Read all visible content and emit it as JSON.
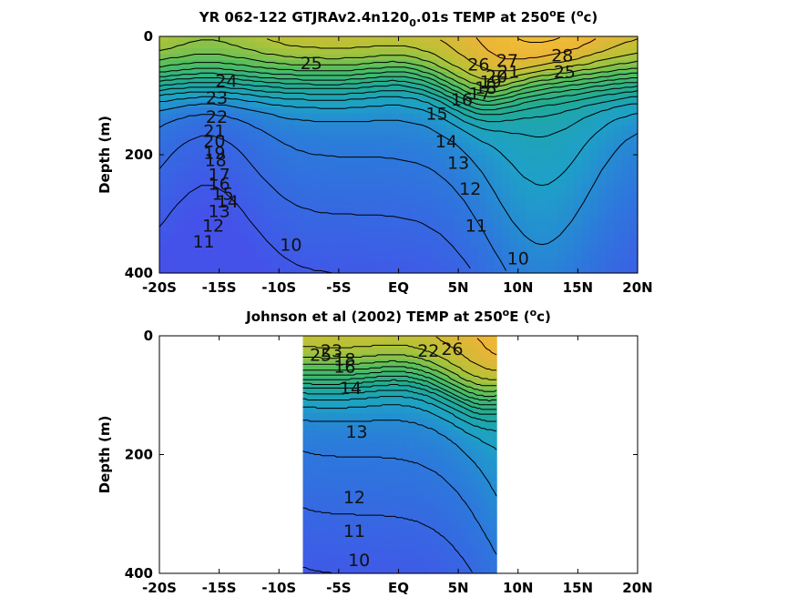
{
  "chart_data": [
    {
      "type": "heatmap",
      "title": "YR 062-122 GTJRAv2.4n120",
      "title_subscript": "0",
      "title_rest": ".01s TEMP at 250",
      "title_sup": "o",
      "title_end": "E (",
      "title_unit_sup": "o",
      "title_unit": "c)",
      "ylabel": "Depth (m)",
      "xlim": [
        -20,
        20
      ],
      "ylim": [
        0,
        400
      ],
      "x_ticks": [
        "-20S",
        "-15S",
        "-10S",
        "-5S",
        "EQ",
        "5N",
        "10N",
        "15N",
        "20N"
      ],
      "y_ticks": [
        "0",
        "200",
        "400"
      ],
      "grid": false,
      "contour_labels": [
        {
          "text": "25",
          "x": -7.3,
          "y": 55
        },
        {
          "text": "24",
          "x": -14.4,
          "y": 85
        },
        {
          "text": "23",
          "x": -15.2,
          "y": 114
        },
        {
          "text": "22",
          "x": -15.2,
          "y": 146
        },
        {
          "text": "21",
          "x": -15.4,
          "y": 170
        },
        {
          "text": "20",
          "x": -15.4,
          "y": 187
        },
        {
          "text": "19",
          "x": -15.4,
          "y": 207
        },
        {
          "text": "18",
          "x": -15.3,
          "y": 219
        },
        {
          "text": "17",
          "x": -15.0,
          "y": 244
        },
        {
          "text": "16",
          "x": -15.0,
          "y": 259
        },
        {
          "text": "15",
          "x": -14.7,
          "y": 276
        },
        {
          "text": "14",
          "x": -14.3,
          "y": 289
        },
        {
          "text": "13",
          "x": -15.0,
          "y": 305
        },
        {
          "text": "12",
          "x": -15.5,
          "y": 330
        },
        {
          "text": "11",
          "x": -16.3,
          "y": 357
        },
        {
          "text": "10",
          "x": -9.0,
          "y": 362
        },
        {
          "text": "26",
          "x": 6.7,
          "y": 58
        },
        {
          "text": "27",
          "x": 9.1,
          "y": 51
        },
        {
          "text": "28",
          "x": 13.7,
          "y": 42
        },
        {
          "text": "25",
          "x": 13.9,
          "y": 70
        },
        {
          "text": "21",
          "x": 9.2,
          "y": 70
        },
        {
          "text": "20",
          "x": 8.2,
          "y": 78
        },
        {
          "text": "19",
          "x": 7.7,
          "y": 87
        },
        {
          "text": "18",
          "x": 7.3,
          "y": 97
        },
        {
          "text": "17",
          "x": 6.8,
          "y": 107
        },
        {
          "text": "16",
          "x": 5.3,
          "y": 117
        },
        {
          "text": "15",
          "x": 3.2,
          "y": 141
        },
        {
          "text": "14",
          "x": 4.0,
          "y": 188
        },
        {
          "text": "13",
          "x": 5.0,
          "y": 224
        },
        {
          "text": "12",
          "x": 6.0,
          "y": 268
        },
        {
          "text": "11",
          "x": 6.5,
          "y": 330
        },
        {
          "text": "10",
          "x": 10.0,
          "y": 385
        }
      ]
    },
    {
      "type": "heatmap",
      "title": "Johnson et al (2002) TEMP at 250",
      "title_sup": "o",
      "title_end": "E (",
      "title_unit_sup": "o",
      "title_unit": "c)",
      "ylabel": "Depth (m)",
      "xlim": [
        -20,
        20
      ],
      "ylim": [
        0,
        400
      ],
      "data_xrange": [
        -8,
        8.2
      ],
      "x_ticks": [
        "-20S",
        "-15S",
        "-10S",
        "-5S",
        "EQ",
        "5N",
        "10N",
        "15N",
        "20N"
      ],
      "y_ticks": [
        "0",
        "200",
        "400"
      ],
      "grid": false,
      "contour_labels": [
        {
          "text": "25",
          "x": -6.5,
          "y": 42
        },
        {
          "text": "23",
          "x": -5.6,
          "y": 35
        },
        {
          "text": "22",
          "x": 2.5,
          "y": 35
        },
        {
          "text": "26",
          "x": 4.5,
          "y": 32
        },
        {
          "text": "18",
          "x": -4.5,
          "y": 50
        },
        {
          "text": "16",
          "x": -4.5,
          "y": 62
        },
        {
          "text": "14",
          "x": -4.0,
          "y": 98
        },
        {
          "text": "13",
          "x": -3.5,
          "y": 172
        },
        {
          "text": "12",
          "x": -3.7,
          "y": 282
        },
        {
          "text": "11",
          "x": -3.7,
          "y": 339
        },
        {
          "text": "10",
          "x": -3.3,
          "y": 388
        }
      ]
    }
  ],
  "colors": {
    "warm": "#f5c43a",
    "mid": "#1fa8ad",
    "cold": "#4452ea"
  }
}
